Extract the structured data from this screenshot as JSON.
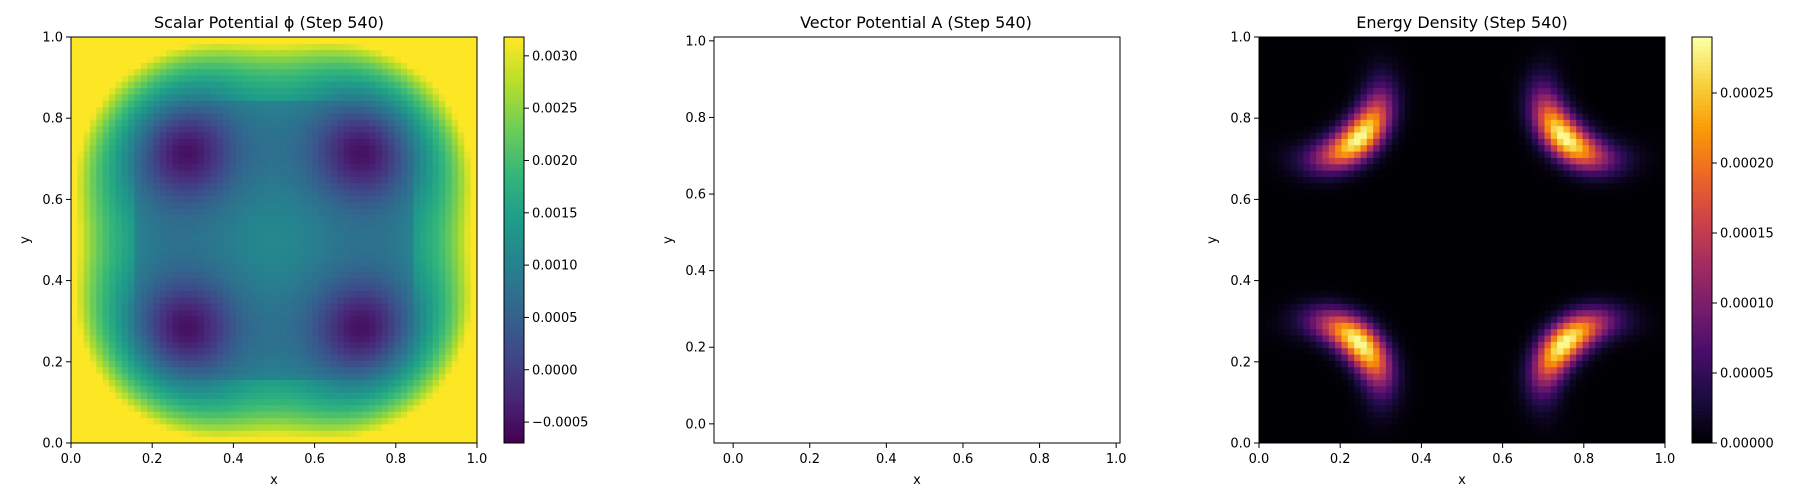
{
  "chart_data": [
    {
      "type": "heatmap",
      "title": "Scalar Potential ϕ (Step 540)",
      "xlabel": "x",
      "ylabel": "y",
      "xlim": [
        0,
        1
      ],
      "ylim": [
        0,
        1
      ],
      "xticks": [
        "0.0",
        "0.2",
        "0.4",
        "0.6",
        "0.8",
        "1.0"
      ],
      "yticks": [
        "0.0",
        "0.2",
        "0.4",
        "0.6",
        "0.8",
        "1.0"
      ],
      "colormap": "viridis",
      "colorbar": {
        "min": -0.0007,
        "max": 0.00318,
        "ticks": [
          {
            "value": -0.0005,
            "label": "−0.0005"
          },
          {
            "value": 0.0,
            "label": "0.0000"
          },
          {
            "value": 0.0005,
            "label": "0.0005"
          },
          {
            "value": 0.001,
            "label": "0.0010"
          },
          {
            "value": 0.0015,
            "label": "0.0015"
          },
          {
            "value": 0.002,
            "label": "0.0020"
          },
          {
            "value": 0.0025,
            "label": "0.0025"
          },
          {
            "value": 0.003,
            "label": "0.0030"
          }
        ]
      },
      "field": {
        "description_of_pattern": "minima near (0.28,0.28),(0.72,0.28),(0.28,0.72),(0.72,0.72); maxima at corners",
        "minima": [
          [
            0.28,
            0.28
          ],
          [
            0.72,
            0.28
          ],
          [
            0.28,
            0.72
          ],
          [
            0.72,
            0.72
          ]
        ],
        "grid_resolution": 64
      }
    },
    {
      "type": "scatter",
      "title": "Vector Potential A (Step 540)",
      "xlabel": "x",
      "ylabel": "y",
      "xlim": [
        -0.05,
        1.01
      ],
      "ylim": [
        -0.05,
        1.01
      ],
      "xticks": [
        "0.0",
        "0.2",
        "0.4",
        "0.6",
        "0.8",
        "1.0"
      ],
      "yticks": [
        "0.0",
        "0.2",
        "0.4",
        "0.6",
        "0.8",
        "1.0"
      ],
      "series": []
    },
    {
      "type": "heatmap",
      "title": "Energy Density (Step 540)",
      "xlabel": "x",
      "ylabel": "y",
      "xlim": [
        0,
        1
      ],
      "ylim": [
        0,
        1
      ],
      "xticks": [
        "0.0",
        "0.2",
        "0.4",
        "0.6",
        "0.8",
        "1.0"
      ],
      "yticks": [
        "0.0",
        "0.2",
        "0.4",
        "0.6",
        "0.8",
        "1.0"
      ],
      "colormap": "inferno",
      "colorbar": {
        "min": 0.0,
        "max": 0.00029,
        "ticks": [
          {
            "value": 0.0,
            "label": "0.00000"
          },
          {
            "value": 5e-05,
            "label": "0.00005"
          },
          {
            "value": 0.0001,
            "label": "0.00010"
          },
          {
            "value": 0.00015,
            "label": "0.00015"
          },
          {
            "value": 0.0002,
            "label": "0.00020"
          },
          {
            "value": 0.00025,
            "label": "0.00025"
          }
        ]
      },
      "field": {
        "description_of_pattern": "curved bright arcs near each corner",
        "corner_centers": [
          [
            0.12,
            0.12
          ],
          [
            0.88,
            0.12
          ],
          [
            0.12,
            0.88
          ],
          [
            0.88,
            0.88
          ]
        ],
        "arc_radius": 0.18,
        "grid_resolution": 64
      }
    }
  ]
}
